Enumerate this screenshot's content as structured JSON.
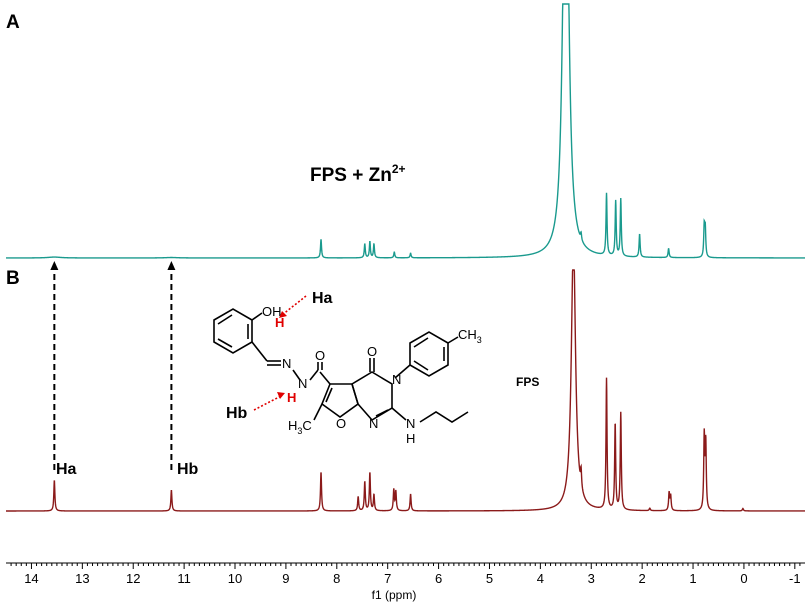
{
  "chart_data": {
    "type": "line",
    "x_axis": {
      "label": "f1 (ppm)",
      "range": [
        14.5,
        -1.2
      ],
      "reversed": true,
      "ticks": [
        14,
        13,
        12,
        11,
        10,
        9,
        8,
        7,
        6,
        5,
        4,
        3,
        2,
        1,
        0,
        -1
      ]
    },
    "panels": [
      {
        "panel_label": "A",
        "series_label": "FPS + Zn",
        "series_label_sup": "2+",
        "color": "#1a9a8e",
        "baseline_y": 0,
        "peaks": [
          {
            "ppm": 13.55,
            "height": 0.004,
            "width": 0.15
          },
          {
            "ppm": 11.25,
            "height": 0.002,
            "width": 0.15
          },
          {
            "ppm": 8.31,
            "height": 0.08
          },
          {
            "ppm": 7.45,
            "height": 0.06
          },
          {
            "ppm": 7.35,
            "height": 0.07
          },
          {
            "ppm": 7.27,
            "height": 0.06
          },
          {
            "ppm": 6.87,
            "height": 0.025
          },
          {
            "ppm": 6.55,
            "height": 0.02
          },
          {
            "ppm": 3.52,
            "height": 1.1,
            "width": 0.06
          },
          {
            "ppm": 3.48,
            "height": 1.05,
            "width": 0.06
          },
          {
            "ppm": 3.2,
            "height": 0.03
          },
          {
            "ppm": 2.7,
            "height": 0.27
          },
          {
            "ppm": 2.52,
            "height": 0.24
          },
          {
            "ppm": 2.42,
            "height": 0.25
          },
          {
            "ppm": 2.05,
            "height": 0.1
          },
          {
            "ppm": 1.48,
            "height": 0.04
          },
          {
            "ppm": 0.78,
            "height": 0.13
          },
          {
            "ppm": 0.76,
            "height": 0.12
          }
        ]
      },
      {
        "panel_label": "B",
        "series_label": "FPS",
        "color": "#8b1a1a",
        "baseline_y": 0,
        "peaks": [
          {
            "ppm": 13.55,
            "height": 0.125
          },
          {
            "ppm": 11.25,
            "height": 0.085
          },
          {
            "ppm": 8.31,
            "height": 0.158
          },
          {
            "ppm": 7.58,
            "height": 0.058
          },
          {
            "ppm": 7.45,
            "height": 0.118
          },
          {
            "ppm": 7.35,
            "height": 0.155
          },
          {
            "ppm": 7.27,
            "height": 0.065
          },
          {
            "ppm": 6.88,
            "height": 0.085
          },
          {
            "ppm": 6.84,
            "height": 0.078
          },
          {
            "ppm": 6.55,
            "height": 0.068
          },
          {
            "ppm": 3.35,
            "height": 1.1,
            "width": 0.05
          },
          {
            "ppm": 3.2,
            "height": 0.072
          },
          {
            "ppm": 2.7,
            "height": 0.533
          },
          {
            "ppm": 2.53,
            "height": 0.35
          },
          {
            "ppm": 2.42,
            "height": 0.395
          },
          {
            "ppm": 1.47,
            "height": 0.072
          },
          {
            "ppm": 1.44,
            "height": 0.06
          },
          {
            "ppm": 0.78,
            "height": 0.298
          },
          {
            "ppm": 0.75,
            "height": 0.27
          },
          {
            "ppm": 1.85,
            "height": 0.01
          },
          {
            "ppm": 0.02,
            "height": 0.01
          }
        ]
      }
    ],
    "annotations": [
      {
        "label": "Ha",
        "ppm": 13.55
      },
      {
        "label": "Hb",
        "ppm": 11.25
      }
    ]
  },
  "structure": {
    "label_ha": "Ha",
    "label_hb": "Hb",
    "oh": "OH",
    "h_red": "H",
    "n1": "N",
    "n2": "N",
    "o_carbonyl1": "O",
    "o_carbonyl2": "O",
    "n3": "N",
    "n4": "N",
    "o_furan": "O",
    "nh_n": "N",
    "nh_h": "H",
    "ch3_top": "CH",
    "ch3_top_sub": "3",
    "h3c_left": "H",
    "h3c_left_sub": "3",
    "h3c_left_c": "C"
  }
}
